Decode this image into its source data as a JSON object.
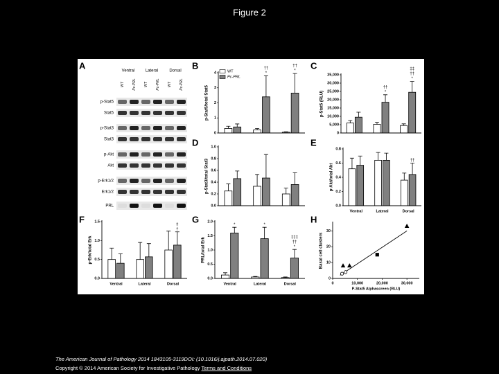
{
  "title": "Figure 2",
  "blot": {
    "panel": "A",
    "groups": [
      "Ventral",
      "Lateral",
      "Dorsal"
    ],
    "lanes": [
      "WT",
      "Pc-PRL",
      "WT",
      "Pc-PRL",
      "WT",
      "Pc-PRL"
    ],
    "rows": [
      "p-Stat5",
      "Stat5",
      "p-Stat3",
      "Stat3",
      "p-Akt",
      "Akt",
      "p-Erk1/2",
      "Erk1/2",
      "PRL"
    ]
  },
  "chart_data": [
    {
      "panel": "B",
      "type": "bar",
      "ylabel": "p-Stat5/total Stat5",
      "categories": [
        null,
        null,
        null
      ],
      "series": [
        {
          "name": "WT",
          "color": "#ffffff",
          "values": [
            0.3,
            0.2,
            0.05
          ],
          "errors": [
            0.15,
            0.1,
            0.03
          ]
        },
        {
          "name": "Pc-PRL",
          "color": "#808080",
          "values": [
            0.4,
            2.4,
            2.65
          ],
          "errors": [
            0.2,
            1.4,
            1.3
          ],
          "marks": [
            null,
            [
              "††",
              "*"
            ],
            [
              "††",
              "*"
            ]
          ]
        }
      ],
      "ylim": [
        0,
        4
      ],
      "yticks": [
        0,
        1,
        2,
        3,
        4
      ]
    },
    {
      "panel": "C",
      "type": "bar",
      "ylabel": "p-Stat5 (RLU)",
      "categories": [
        null,
        null,
        null
      ],
      "series": [
        {
          "color": "#ffffff",
          "values": [
            6000,
            5200,
            4500
          ],
          "errors": [
            1500,
            1200,
            1000
          ]
        },
        {
          "color": "#808080",
          "values": [
            9500,
            18500,
            24500
          ],
          "errors": [
            3000,
            4500,
            6500
          ],
          "marks": [
            null,
            [
              "††",
              "*"
            ],
            [
              "‡‡",
              "††",
              "*"
            ]
          ]
        }
      ],
      "ylim": [
        0,
        35000
      ],
      "yticks": [
        0,
        {
          "value": 5000,
          "label": "5,000"
        },
        {
          "value": 10000,
          "label": "10,000"
        },
        {
          "value": 15000,
          "label": "15,000"
        },
        {
          "value": 20000,
          "label": "20,000"
        },
        {
          "value": 25000,
          "label": "25,000"
        },
        {
          "value": 30000,
          "label": "30,000"
        },
        {
          "value": 35000,
          "label": "35,000"
        }
      ]
    },
    {
      "panel": "D",
      "type": "bar",
      "ylabel": "p-Stat3/total Stat3",
      "categories": [
        null,
        null,
        null
      ],
      "series": [
        {
          "color": "#ffffff",
          "values": [
            0.25,
            0.33,
            0.2
          ],
          "errors": [
            0.12,
            0.2,
            0.1
          ]
        },
        {
          "color": "#808080",
          "values": [
            0.46,
            0.47,
            0.36
          ],
          "errors": [
            0.13,
            0.4,
            0.2
          ]
        }
      ],
      "ylim": [
        0,
        1.0
      ],
      "yticks": [
        {
          "value": 0,
          "label": "0.0"
        },
        0.2,
        0.4,
        0.6,
        0.8,
        {
          "value": 1.0,
          "label": "1.0"
        }
      ]
    },
    {
      "panel": "E",
      "type": "bar",
      "ylabel": "p-Akt/total Akt",
      "categories": [
        "Ventral",
        "Lateral",
        "Dorsal"
      ],
      "series": [
        {
          "color": "#ffffff",
          "values": [
            0.52,
            0.64,
            0.36
          ],
          "errors": [
            0.15,
            0.11,
            0.1
          ]
        },
        {
          "color": "#808080",
          "values": [
            0.57,
            0.64,
            0.44
          ],
          "errors": [
            0.13,
            0.1,
            0.16
          ],
          "marks": [
            null,
            null,
            [
              "††"
            ]
          ]
        }
      ],
      "ylim": [
        0,
        0.8
      ],
      "yticks": [
        {
          "value": 0,
          "label": "0.0"
        },
        0.2,
        0.4,
        0.6,
        0.8
      ]
    },
    {
      "panel": "F",
      "type": "bar",
      "ylabel": "p-Erk/total Erk",
      "categories": [
        "Ventral",
        "Lateral",
        "Dorsal"
      ],
      "series": [
        {
          "color": "#ffffff",
          "values": [
            0.5,
            0.5,
            0.75
          ],
          "errors": [
            0.3,
            0.45,
            0.5
          ]
        },
        {
          "color": "#808080",
          "values": [
            0.4,
            0.57,
            0.88
          ],
          "errors": [
            0.25,
            0.35,
            0.35
          ],
          "marks": [
            null,
            null,
            [
              "‡",
              "†"
            ]
          ]
        }
      ],
      "ylim": [
        0,
        1.5
      ],
      "yticks": [
        {
          "value": 0,
          "label": "0.0"
        },
        0.5,
        {
          "value": 1.0,
          "label": "1.0"
        },
        1.5
      ]
    },
    {
      "panel": "G",
      "type": "bar",
      "ylabel": "PRL/total Erk",
      "categories": [
        "Ventral",
        "Lateral",
        "Dorsal"
      ],
      "series": [
        {
          "color": "#ffffff",
          "values": [
            0.12,
            0.05,
            0.03
          ],
          "errors": [
            0.08,
            0.02,
            0.02
          ]
        },
        {
          "color": "#808080",
          "values": [
            1.6,
            1.4,
            0.72
          ],
          "errors": [
            0.2,
            0.4,
            0.3
          ],
          "marks": [
            [
              "*"
            ],
            [
              "*"
            ],
            [
              "‡‡‡",
              "††",
              "*"
            ]
          ]
        }
      ],
      "ylim": [
        0,
        2.0
      ],
      "yticks": [
        {
          "value": 0,
          "label": "0.0"
        },
        0.5,
        {
          "value": 1.0,
          "label": "1.0"
        },
        1.5,
        {
          "value": 2.0,
          "label": "2.0"
        }
      ]
    },
    {
      "panel": "H",
      "type": "scatter",
      "xlabel": "P-Stat5 Alphascreen (RLU)",
      "ylabel": "Basal cell clusters",
      "x": [
        3800,
        5200,
        6800,
        18000,
        30000,
        4200
      ],
      "y": [
        3,
        4,
        8,
        15,
        33,
        8
      ],
      "shapes": [
        "circle-open",
        "circle-open",
        "triangle",
        "square",
        "triangle",
        "triangle"
      ],
      "trendline": {
        "x": [
          3000,
          30000
        ],
        "y": [
          2,
          30
        ]
      },
      "xlim": [
        0,
        35000
      ],
      "xticks": [
        0,
        {
          "value": 10000,
          "label": "10,000"
        },
        {
          "value": 20000,
          "label": "20,000"
        },
        {
          "value": 30000,
          "label": "30,000"
        }
      ],
      "ylim": [
        0,
        35
      ],
      "yticks": [
        0,
        10,
        20,
        30
      ]
    }
  ],
  "footer": {
    "citation": "The American Journal of Pathology 2014 1843105-3119DOI: (10.1016/j.ajpath.2014.07.020)",
    "copyright": "Copyright © 2014 American Society for Investigative Pathology",
    "link": "Terms and Conditions"
  }
}
